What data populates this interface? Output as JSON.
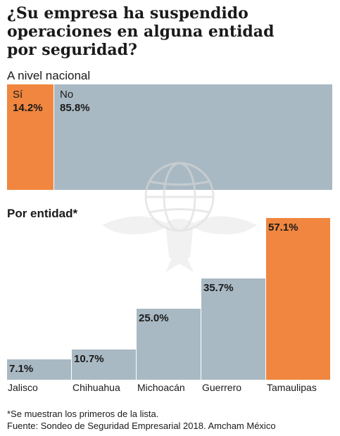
{
  "title_lines": [
    "¿Su empresa ha suspendido",
    "operaciones en alguna entidad",
    "por seguridad?"
  ],
  "national": {
    "label": "A nivel nacional",
    "segments": [
      {
        "label": "Sí",
        "value": 14.2,
        "value_text": "14.2%",
        "color": "#f0863f"
      },
      {
        "label": "No",
        "value": 85.8,
        "value_text": "85.8%",
        "color": "#a9b9c3"
      }
    ]
  },
  "by_entity_label": "Por entidad*",
  "chart_data": {
    "type": "bar",
    "categories": [
      "Jalisco",
      "Chihuahua",
      "Michoacán",
      "Guerrero",
      "Tamaulipas"
    ],
    "values": [
      7.1,
      10.7,
      25.0,
      35.7,
      57.1
    ],
    "value_labels": [
      "7.1%",
      "10.7%",
      "25.0%",
      "35.7%",
      "57.1%"
    ],
    "colors": [
      "#a9b9c3",
      "#a9b9c3",
      "#a9b9c3",
      "#a9b9c3",
      "#f0863f"
    ],
    "ylim": [
      0,
      57.1
    ]
  },
  "footnotes": [
    "*Se muestran los primeros de la lista.",
    "Fuente: Sondeo de Seguridad Empresarial 2018. Amcham México"
  ]
}
